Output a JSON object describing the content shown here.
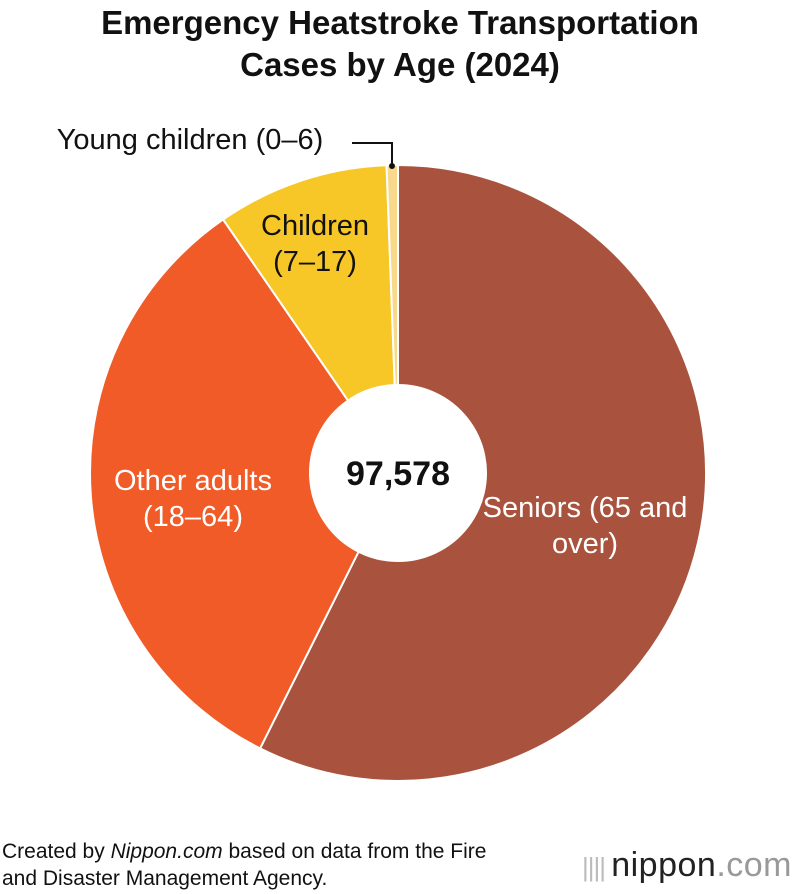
{
  "chart_data": {
    "type": "donut",
    "title": "Emergency Heatstroke Transportation Cases by Age (2024)",
    "categories": [
      "Seniors (65 and over)",
      "Other adults (18–64)",
      "Children (7–17)",
      "Young children (0–6)"
    ],
    "values": [
      56000,
      32200,
      8800,
      578
    ],
    "colors": [
      "#a9533e",
      "#f05b28",
      "#f7c627",
      "#f8d98c"
    ],
    "center_text": "97,578"
  },
  "footer": {
    "parts": [
      "Created by ",
      "Nippon.com",
      " based on data from the Fire and Disaster Management Agency."
    ],
    "logo": [
      "nippon",
      ".com"
    ]
  }
}
